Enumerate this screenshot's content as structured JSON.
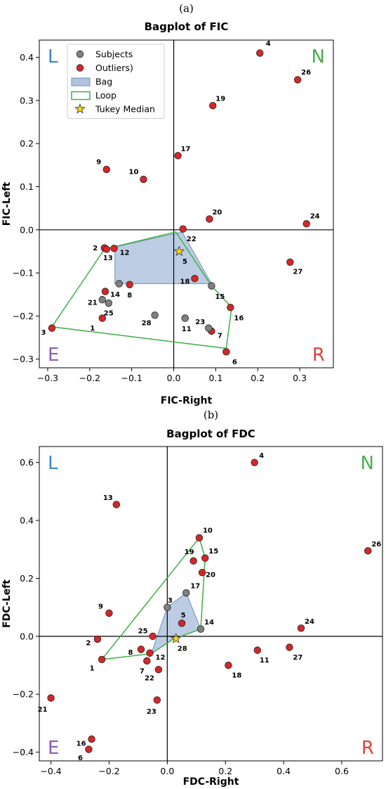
{
  "colors": {
    "subject": "#808080",
    "outlier": "#d62728",
    "bag_fill": "#b0c4de",
    "bag_edge": "#6f8fbf",
    "loop": "#3cb043",
    "median": "#f5d020",
    "quad_L": "#3a86c8",
    "quad_N": "#4cae4c",
    "quad_E": "#8e5bb5",
    "quad_R": "#e0443e"
  },
  "chart_data": [
    {
      "type": "scatter",
      "panel_label": "(a)",
      "title": "Bagplot of FIC",
      "xlabel": "FIC-Right",
      "ylabel": "FIC-Left",
      "xlim": [
        -0.32,
        0.38
      ],
      "ylim": [
        -0.32,
        0.44
      ],
      "xticks": [
        {
          "v": -0.3,
          "label": "−0.3"
        },
        {
          "v": -0.2,
          "label": "−0.2"
        },
        {
          "v": -0.1,
          "label": "−0.1"
        },
        {
          "v": 0.0,
          "label": "0.0"
        },
        {
          "v": 0.1,
          "label": "0.1"
        },
        {
          "v": 0.2,
          "label": "0.2"
        },
        {
          "v": 0.3,
          "label": "0.3"
        }
      ],
      "yticks": [
        {
          "v": -0.3,
          "label": "−0.3"
        },
        {
          "v": -0.2,
          "label": "−0.2"
        },
        {
          "v": -0.1,
          "label": "−0.1"
        },
        {
          "v": 0.0,
          "label": "0.0"
        },
        {
          "v": 0.1,
          "label": "0.1"
        },
        {
          "v": 0.2,
          "label": "0.2"
        },
        {
          "v": 0.3,
          "label": "0.3"
        },
        {
          "v": 0.4,
          "label": "0.4"
        }
      ],
      "quadrants": {
        "top_left": "L",
        "top_right": "N",
        "bottom_left": "E",
        "bottom_right": "R"
      },
      "legend": {
        "position": "upper-left",
        "items": [
          {
            "kind": "subject",
            "label": "Subjects"
          },
          {
            "kind": "outlier",
            "label": "Outliers)"
          },
          {
            "kind": "bag",
            "label": "Bag"
          },
          {
            "kind": "loop",
            "label": "Loop"
          },
          {
            "kind": "median",
            "label": "Tukey Median"
          }
        ]
      },
      "bag": [
        [
          -0.14,
          -0.04
        ],
        [
          0.02,
          -0.005
        ],
        [
          0.09,
          -0.125
        ],
        [
          -0.14,
          -0.125
        ]
      ],
      "loop": [
        [
          -0.165,
          -0.045
        ],
        [
          0.005,
          -0.005
        ],
        [
          0.09,
          -0.13
        ],
        [
          0.138,
          -0.18
        ],
        [
          0.125,
          -0.275
        ],
        [
          -0.29,
          -0.225
        ]
      ],
      "median": [
        0.01,
        -0.05
      ],
      "points": [
        {
          "id": "1",
          "x": -0.17,
          "y": -0.205,
          "type": "outlier",
          "dx": -14,
          "dy": 14
        },
        {
          "id": "2",
          "x": -0.165,
          "y": -0.042,
          "type": "outlier",
          "dx": -13,
          "dy": 0
        },
        {
          "id": "3",
          "x": -0.29,
          "y": -0.228,
          "type": "outlier",
          "dx": -12,
          "dy": 6
        },
        {
          "id": "4",
          "x": 0.205,
          "y": 0.41,
          "type": "outlier",
          "dx": 12,
          "dy": -14
        },
        {
          "id": "5",
          "x": 0.013,
          "y": -0.05,
          "type": "median",
          "dx": 8,
          "dy": 14
        },
        {
          "id": "6",
          "x": 0.125,
          "y": -0.283,
          "type": "outlier",
          "dx": 12,
          "dy": 14
        },
        {
          "id": "7",
          "x": 0.09,
          "y": -0.235,
          "type": "outlier",
          "dx": 12,
          "dy": 6
        },
        {
          "id": "8",
          "x": -0.105,
          "y": -0.127,
          "type": "outlier",
          "dx": 0,
          "dy": 15
        },
        {
          "id": "9",
          "x": -0.16,
          "y": 0.14,
          "type": "outlier",
          "dx": -11,
          "dy": -11
        },
        {
          "id": "10",
          "x": -0.072,
          "y": 0.117,
          "type": "outlier",
          "dx": -14,
          "dy": -11
        },
        {
          "id": "11",
          "x": 0.027,
          "y": -0.205,
          "type": "subject",
          "dx": 2,
          "dy": 15
        },
        {
          "id": "12",
          "x": -0.142,
          "y": -0.043,
          "type": "outlier",
          "dx": 15,
          "dy": 6
        },
        {
          "id": "13",
          "x": -0.16,
          "y": -0.045,
          "type": "outlier",
          "dx": 2,
          "dy": 12
        },
        {
          "id": "14",
          "x": -0.163,
          "y": -0.143,
          "type": "outlier",
          "dx": 14,
          "dy": 4
        },
        {
          "id": "15",
          "x": 0.09,
          "y": -0.13,
          "type": "subject",
          "dx": 12,
          "dy": 15
        },
        {
          "id": "16",
          "x": 0.135,
          "y": -0.18,
          "type": "outlier",
          "dx": 12,
          "dy": 15
        },
        {
          "id": "17",
          "x": 0.01,
          "y": 0.172,
          "type": "outlier",
          "dx": 11,
          "dy": -10
        },
        {
          "id": "18",
          "x": 0.05,
          "y": -0.113,
          "type": "outlier",
          "dx": -14,
          "dy": 4
        },
        {
          "id": "19",
          "x": 0.093,
          "y": 0.288,
          "type": "outlier",
          "dx": 11,
          "dy": -10
        },
        {
          "id": "20",
          "x": 0.085,
          "y": 0.025,
          "type": "outlier",
          "dx": 11,
          "dy": -10
        },
        {
          "id": "21",
          "x": -0.17,
          "y": -0.162,
          "type": "subject",
          "dx": -14,
          "dy": 4
        },
        {
          "id": "22",
          "x": 0.022,
          "y": 0.002,
          "type": "outlier",
          "dx": 12,
          "dy": 14
        },
        {
          "id": "23",
          "x": 0.083,
          "y": -0.228,
          "type": "subject",
          "dx": -12,
          "dy": -9
        },
        {
          "id": "24",
          "x": 0.316,
          "y": 0.014,
          "type": "outlier",
          "dx": 12,
          "dy": -11
        },
        {
          "id": "25",
          "x": -0.155,
          "y": -0.17,
          "type": "subject",
          "dx": 0,
          "dy": 14
        },
        {
          "id": "26",
          "x": 0.295,
          "y": 0.348,
          "type": "outlier",
          "dx": 12,
          "dy": -11
        },
        {
          "id": "27",
          "x": 0.277,
          "y": -0.075,
          "type": "outlier",
          "dx": 11,
          "dy": 13
        },
        {
          "id": "28",
          "x": -0.045,
          "y": -0.198,
          "type": "subject",
          "dx": -12,
          "dy": 11
        },
        {
          "id": "",
          "x": -0.13,
          "y": -0.125,
          "type": "subject",
          "dx": 0,
          "dy": 0
        }
      ]
    },
    {
      "type": "scatter",
      "panel_label": "(b)",
      "title": "Bagplot of FDC",
      "xlabel": "FDC-Right",
      "ylabel": "FDC-Left",
      "xlim": [
        -0.44,
        0.74
      ],
      "ylim": [
        -0.43,
        0.655
      ],
      "xticks": [
        {
          "v": -0.4,
          "label": "−0.4"
        },
        {
          "v": -0.2,
          "label": "−0.2"
        },
        {
          "v": 0.0,
          "label": "0.0"
        },
        {
          "v": 0.2,
          "label": "0.2"
        },
        {
          "v": 0.4,
          "label": "0.4"
        },
        {
          "v": 0.6,
          "label": "0.6"
        }
      ],
      "yticks": [
        {
          "v": -0.4,
          "label": "−0.4"
        },
        {
          "v": -0.2,
          "label": "−0.2"
        },
        {
          "v": 0.0,
          "label": "0.0"
        },
        {
          "v": 0.2,
          "label": "0.2"
        },
        {
          "v": 0.4,
          "label": "0.4"
        },
        {
          "v": 0.6,
          "label": "0.6"
        }
      ],
      "quadrants": {
        "top_left": "L",
        "top_right": "N",
        "bottom_left": "E",
        "bottom_right": "R"
      },
      "bag": [
        [
          0.0,
          0.1
        ],
        [
          0.065,
          0.15
        ],
        [
          0.115,
          0.025
        ],
        [
          0.02,
          -0.01
        ],
        [
          -0.055,
          -0.06
        ]
      ],
      "loop": [
        [
          -0.225,
          -0.08
        ],
        [
          0.11,
          0.34
        ],
        [
          0.13,
          0.27
        ],
        [
          0.115,
          0.025
        ],
        [
          0.02,
          -0.01
        ],
        [
          -0.055,
          -0.06
        ]
      ],
      "median": [
        0.03,
        -0.008
      ],
      "points": [
        {
          "id": "1",
          "x": -0.225,
          "y": -0.08,
          "type": "outlier",
          "dx": -14,
          "dy": 12
        },
        {
          "id": "2",
          "x": -0.24,
          "y": -0.01,
          "type": "outlier",
          "dx": -13,
          "dy": 5
        },
        {
          "id": "3",
          "x": 0.0,
          "y": 0.1,
          "type": "subject",
          "dx": 4,
          "dy": -10
        },
        {
          "id": "4",
          "x": 0.3,
          "y": 0.6,
          "type": "outlier",
          "dx": 10,
          "dy": -10
        },
        {
          "id": "5",
          "x": 0.05,
          "y": 0.045,
          "type": "outlier",
          "dx": 2,
          "dy": -12
        },
        {
          "id": "6",
          "x": -0.27,
          "y": -0.39,
          "type": "outlier",
          "dx": -12,
          "dy": 12
        },
        {
          "id": "7",
          "x": -0.07,
          "y": -0.085,
          "type": "outlier",
          "dx": -7,
          "dy": 14
        },
        {
          "id": "8",
          "x": -0.09,
          "y": -0.045,
          "type": "outlier",
          "dx": -15,
          "dy": 4
        },
        {
          "id": "9",
          "x": -0.2,
          "y": 0.08,
          "type": "outlier",
          "dx": -12,
          "dy": -10
        },
        {
          "id": "10",
          "x": 0.11,
          "y": 0.34,
          "type": "outlier",
          "dx": 12,
          "dy": -11
        },
        {
          "id": "11",
          "x": 0.31,
          "y": -0.048,
          "type": "outlier",
          "dx": 10,
          "dy": 14
        },
        {
          "id": "12",
          "x": -0.06,
          "y": -0.058,
          "type": "outlier",
          "dx": 15,
          "dy": 6
        },
        {
          "id": "13",
          "x": -0.175,
          "y": 0.455,
          "type": "outlier",
          "dx": -12,
          "dy": -10
        },
        {
          "id": "14",
          "x": 0.115,
          "y": 0.025,
          "type": "subject",
          "dx": 12,
          "dy": -10
        },
        {
          "id": "15",
          "x": 0.13,
          "y": 0.27,
          "type": "outlier",
          "dx": 12,
          "dy": -10
        },
        {
          "id": "16",
          "x": -0.26,
          "y": -0.355,
          "type": "outlier",
          "dx": -15,
          "dy": 6
        },
        {
          "id": "17",
          "x": 0.065,
          "y": 0.15,
          "type": "subject",
          "dx": 13,
          "dy": -10
        },
        {
          "id": "18",
          "x": 0.21,
          "y": -0.1,
          "type": "outlier",
          "dx": 12,
          "dy": 14
        },
        {
          "id": "19",
          "x": 0.09,
          "y": 0.26,
          "type": "outlier",
          "dx": -6,
          "dy": -13
        },
        {
          "id": "20",
          "x": 0.12,
          "y": 0.22,
          "type": "outlier",
          "dx": 12,
          "dy": 3
        },
        {
          "id": "21",
          "x": -0.4,
          "y": -0.213,
          "type": "outlier",
          "dx": -12,
          "dy": 16
        },
        {
          "id": "22",
          "x": -0.03,
          "y": -0.115,
          "type": "outlier",
          "dx": -13,
          "dy": 12
        },
        {
          "id": "23",
          "x": -0.035,
          "y": -0.22,
          "type": "outlier",
          "dx": -8,
          "dy": 16
        },
        {
          "id": "24",
          "x": 0.46,
          "y": 0.028,
          "type": "outlier",
          "dx": 12,
          "dy": -10
        },
        {
          "id": "25",
          "x": -0.05,
          "y": 0.0,
          "type": "outlier",
          "dx": -14,
          "dy": -8
        },
        {
          "id": "26",
          "x": 0.69,
          "y": 0.295,
          "type": "outlier",
          "dx": 12,
          "dy": -10
        },
        {
          "id": "27",
          "x": 0.42,
          "y": -0.038,
          "type": "outlier",
          "dx": 12,
          "dy": 14
        },
        {
          "id": "28",
          "x": 0.03,
          "y": -0.008,
          "type": "median",
          "dx": 9,
          "dy": 14
        }
      ]
    }
  ]
}
